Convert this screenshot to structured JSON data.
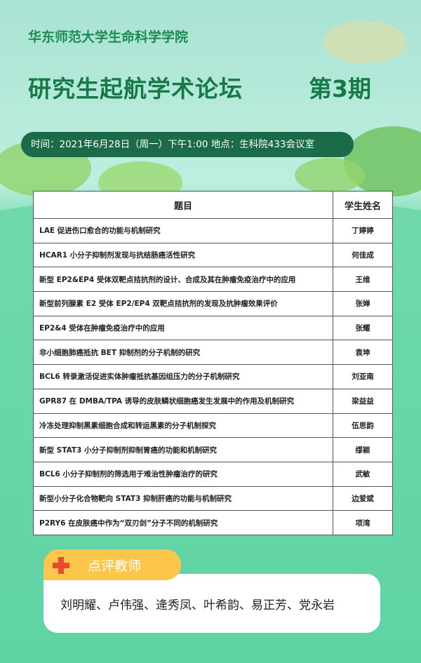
{
  "header": {
    "org": "华东师范大学生命科学学院",
    "title": "研究生起航学术论坛",
    "issue": "第3期",
    "info": "时间：2021年6月28日（周一）下午1:00 地点：生科院433会议室"
  },
  "table": {
    "columns": [
      "题目",
      "学生姓名"
    ],
    "rows": [
      [
        "LAE 促进伤口愈合的功能与机制研究",
        "丁婷婷"
      ],
      [
        "HCAR1 小分子抑制剂发现与抗结肠癌活性研究",
        "何佳成"
      ],
      [
        "新型 EP2&EP4 受体双靶点拮抗剂的设计、合成及其在肿瘤免疫治疗中的应用",
        "王维"
      ],
      [
        "新型前列腺素 E2 受体 EP2/EP4 双靶点拮抗剂的发现及抗肿瘤效果评价",
        "张婵"
      ],
      [
        "EP2&4 受体在肿瘤免疫治疗中的应用",
        "张耀"
      ],
      [
        "非小细胞肺癌抵抗 BET 抑制剂的分子机制的研究",
        "袁坤"
      ],
      [
        "BCL6 转录激活促进实体肿瘤抵抗基因组压力的分子机制研究",
        "刘亚南"
      ],
      [
        "GPR87 在 DMBA/TPA 诱导的皮肤鳞状细胞癌发生发展中的作用及机制研究",
        "梁益益"
      ],
      [
        "冷冻处理抑制黑素细胞合成和转运黑素的分子机制探究",
        "伍思韵"
      ],
      [
        "新型 STAT3 小分子抑制剂抑制胃癌的功能和机制研究",
        "缪颖"
      ],
      [
        "BCL6 小分子抑制剂的筛选用于难治性肿瘤治疗的研究",
        "武敏"
      ],
      [
        "新型小分子化合物靶向 STAT3 抑制肝癌的功能与机制研究",
        "边爱斌"
      ],
      [
        "P2RY6 在皮肤癌中作为“双刃剑”分子不同的机制研究",
        "项湾"
      ]
    ]
  },
  "reviewers": {
    "label": "点评教师",
    "names": "刘明耀、卢伟强、逄秀凤、叶希韵、易正芳、党永岩"
  }
}
